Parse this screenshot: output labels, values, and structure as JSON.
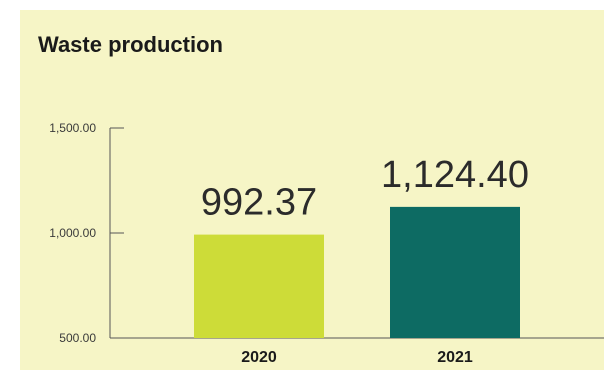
{
  "title": "Waste production",
  "colors": {
    "background": "#f6f5c6",
    "bar_2020": "#cddc38",
    "bar_2021": "#0d6b63",
    "axis": "#555555"
  },
  "chart_data": {
    "type": "bar",
    "title": "Waste production",
    "categories": [
      "2020",
      "2021"
    ],
    "values": [
      992.37,
      1124.4
    ],
    "data_labels": [
      "992.37",
      "1,124.40"
    ],
    "y_ticks": [
      500,
      1000,
      1500
    ],
    "y_tick_labels": [
      "500.00",
      "1,000.00",
      "1,500.00"
    ],
    "ylim": [
      500,
      1500
    ],
    "xlabel": "",
    "ylabel": "",
    "grid": false,
    "legend": "none"
  }
}
